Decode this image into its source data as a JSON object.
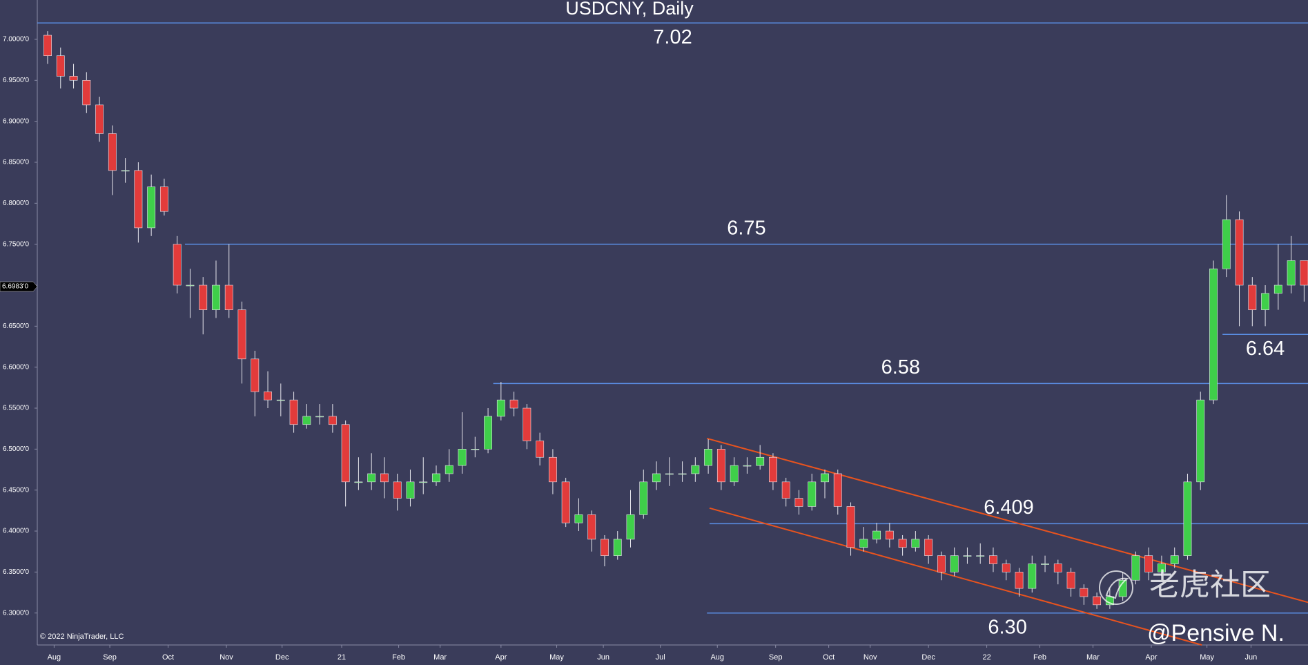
{
  "chart_data": {
    "type": "candlestick",
    "title": "USDCNY, Daily",
    "open": [
      7.005,
      6.98,
      6.955,
      6.95,
      6.92,
      6.885,
      6.84,
      6.84,
      6.77,
      6.82,
      6.75,
      6.7,
      6.7,
      6.67,
      6.7,
      6.67,
      6.61,
      6.57,
      6.56,
      6.56,
      6.53,
      6.54,
      6.54,
      6.53,
      6.46,
      6.46,
      6.47,
      6.46,
      6.44,
      6.46,
      6.46,
      6.47,
      6.48,
      6.5,
      6.5,
      6.54,
      6.56,
      6.55,
      6.51,
      6.49,
      6.46,
      6.41,
      6.42,
      6.39,
      6.37,
      6.39,
      6.42,
      6.46,
      6.47,
      6.47,
      6.47,
      6.48,
      6.5,
      6.46,
      6.48,
      6.48,
      6.49,
      6.46,
      6.44,
      6.43,
      6.46,
      6.47,
      6.43,
      6.38,
      6.39,
      6.4,
      6.39,
      6.38,
      6.39,
      6.37,
      6.35,
      6.37,
      6.37,
      6.37,
      6.36,
      6.35,
      6.33,
      6.36,
      6.36,
      6.35,
      6.33,
      6.32,
      6.31,
      6.32,
      6.34,
      6.37,
      6.35,
      6.36,
      6.37,
      6.46,
      6.56,
      6.72,
      6.78,
      6.7,
      6.67,
      6.69,
      6.7,
      6.73
    ],
    "high": [
      7.01,
      6.99,
      6.97,
      6.96,
      6.93,
      6.895,
      6.855,
      6.85,
      6.835,
      6.83,
      6.76,
      6.72,
      6.71,
      6.73,
      6.75,
      6.68,
      6.62,
      6.595,
      6.58,
      6.57,
      6.555,
      6.555,
      6.555,
      6.535,
      6.49,
      6.495,
      6.49,
      6.47,
      6.475,
      6.49,
      6.48,
      6.5,
      6.545,
      6.515,
      6.55,
      6.582,
      6.57,
      6.555,
      6.52,
      6.5,
      6.465,
      6.44,
      6.425,
      6.395,
      6.4,
      6.45,
      6.475,
      6.485,
      6.49,
      6.485,
      6.49,
      6.512,
      6.505,
      6.49,
      6.49,
      6.505,
      6.495,
      6.465,
      6.45,
      6.47,
      6.475,
      6.475,
      6.435,
      6.405,
      6.41,
      6.41,
      6.395,
      6.4,
      6.395,
      6.375,
      6.38,
      6.38,
      6.385,
      6.38,
      6.365,
      6.355,
      6.37,
      6.37,
      6.365,
      6.355,
      6.335,
      6.325,
      6.33,
      6.35,
      6.375,
      6.38,
      6.37,
      6.38,
      6.47,
      6.57,
      6.73,
      6.81,
      6.79,
      6.71,
      6.7,
      6.75,
      6.76,
      6.73
    ],
    "low": [
      6.97,
      6.94,
      6.94,
      6.91,
      6.875,
      6.81,
      6.825,
      6.752,
      6.76,
      6.785,
      6.69,
      6.66,
      6.64,
      6.66,
      6.66,
      6.58,
      6.54,
      6.55,
      6.54,
      6.52,
      6.525,
      6.53,
      6.52,
      6.43,
      6.45,
      6.45,
      6.44,
      6.425,
      6.43,
      6.445,
      6.455,
      6.46,
      6.47,
      6.49,
      6.495,
      6.535,
      6.54,
      6.5,
      6.48,
      6.445,
      6.405,
      6.4,
      6.375,
      6.357,
      6.365,
      6.38,
      6.415,
      6.45,
      6.455,
      6.46,
      6.46,
      6.47,
      6.45,
      6.455,
      6.47,
      6.475,
      6.45,
      6.43,
      6.42,
      6.425,
      6.44,
      6.42,
      6.37,
      6.375,
      6.385,
      6.38,
      6.37,
      6.375,
      6.36,
      6.34,
      6.345,
      6.36,
      6.36,
      6.35,
      6.34,
      6.32,
      6.325,
      6.35,
      6.335,
      6.32,
      6.31,
      6.305,
      6.305,
      6.315,
      6.335,
      6.34,
      6.345,
      6.355,
      6.365,
      6.45,
      6.555,
      6.71,
      6.65,
      6.65,
      6.65,
      6.67,
      6.69,
      6.68
    ],
    "close": [
      6.98,
      6.955,
      6.95,
      6.92,
      6.885,
      6.84,
      6.84,
      6.77,
      6.82,
      6.79,
      6.7,
      6.7,
      6.67,
      6.7,
      6.67,
      6.61,
      6.57,
      6.56,
      6.56,
      6.53,
      6.54,
      6.54,
      6.53,
      6.46,
      6.46,
      6.47,
      6.46,
      6.44,
      6.46,
      6.46,
      6.47,
      6.48,
      6.5,
      6.5,
      6.54,
      6.56,
      6.55,
      6.51,
      6.49,
      6.46,
      6.41,
      6.42,
      6.39,
      6.37,
      6.39,
      6.42,
      6.46,
      6.47,
      6.47,
      6.47,
      6.48,
      6.5,
      6.46,
      6.48,
      6.48,
      6.49,
      6.46,
      6.44,
      6.43,
      6.46,
      6.47,
      6.43,
      6.38,
      6.39,
      6.4,
      6.39,
      6.38,
      6.39,
      6.37,
      6.35,
      6.37,
      6.37,
      6.37,
      6.36,
      6.35,
      6.33,
      6.36,
      6.36,
      6.35,
      6.33,
      6.32,
      6.31,
      6.32,
      6.34,
      6.37,
      6.35,
      6.36,
      6.37,
      6.46,
      6.56,
      6.72,
      6.78,
      6.7,
      6.67,
      6.69,
      6.7,
      6.73,
      6.7
    ],
    "up_color": "#3fcf4a",
    "down_color": "#e23b3b",
    "xlim": [
      -0.8,
      97.3
    ],
    "xticks": [
      {
        "value": 0.5,
        "label": "Aug"
      },
      {
        "value": 4.8,
        "label": "Sep"
      },
      {
        "value": 9.3,
        "label": "Oct"
      },
      {
        "value": 13.8,
        "label": "Nov"
      },
      {
        "value": 18.1,
        "label": "Dec"
      },
      {
        "value": 22.7,
        "label": "21"
      },
      {
        "value": 27.1,
        "label": "Feb"
      },
      {
        "value": 30.3,
        "label": "Mar"
      },
      {
        "value": 35.0,
        "label": "Apr"
      },
      {
        "value": 39.3,
        "label": "May"
      },
      {
        "value": 42.9,
        "label": "Jun"
      },
      {
        "value": 47.3,
        "label": "Jul"
      },
      {
        "value": 51.7,
        "label": "Aug"
      },
      {
        "value": 56.2,
        "label": "Sep"
      },
      {
        "value": 60.3,
        "label": "Oct"
      },
      {
        "value": 63.5,
        "label": "Nov"
      },
      {
        "value": 68.0,
        "label": "Dec"
      },
      {
        "value": 72.5,
        "label": "22"
      },
      {
        "value": 76.6,
        "label": "Feb"
      },
      {
        "value": 80.7,
        "label": "Mar"
      },
      {
        "value": 85.2,
        "label": "Apr"
      },
      {
        "value": 89.5,
        "label": "May"
      },
      {
        "value": 92.9,
        "label": "Jun"
      }
    ],
    "ylim": [
      6.261,
      7.048
    ],
    "yticks": [
      {
        "value": 6.3,
        "label": "6.3000'0"
      },
      {
        "value": 6.35,
        "label": "6.3500'0"
      },
      {
        "value": 6.4,
        "label": "6.4000'0"
      },
      {
        "value": 6.45,
        "label": "6.4500'0"
      },
      {
        "value": 6.5,
        "label": "6.5000'0"
      },
      {
        "value": 6.55,
        "label": "6.5500'0"
      },
      {
        "value": 6.6,
        "label": "6.6000'0"
      },
      {
        "value": 6.65,
        "label": "6.6500'0"
      },
      {
        "value": 6.7,
        "label": "6.7000'0"
      },
      {
        "value": 6.75,
        "label": "6.7500'0"
      },
      {
        "value": 6.8,
        "label": "6.8000'0"
      },
      {
        "value": 6.85,
        "label": "6.8500'0"
      },
      {
        "value": 6.9,
        "label": "6.9000'0"
      },
      {
        "value": 6.95,
        "label": "6.9500'0"
      },
      {
        "value": 7.0,
        "label": "7.0000'0"
      }
    ],
    "price_marker": {
      "value": 6.6983,
      "label": "6.6983'0"
    },
    "level_color": "#5b8fe6",
    "levels": [
      {
        "value": 7.02,
        "start": -0.8,
        "label_position": "below"
      },
      {
        "value": 6.75,
        "start": 10.6,
        "label_position": "above"
      },
      {
        "value": 6.58,
        "start": 34.4,
        "label_position": "above"
      },
      {
        "value": 6.64,
        "start": 90.7,
        "label_position": "below"
      },
      {
        "value": 6.409,
        "start": 51.1,
        "label_position": "above"
      },
      {
        "value": 6.3,
        "label": "6.30",
        "start": 50.9,
        "label_position": "below"
      }
    ],
    "trendline_color": "#e8531e",
    "trendlines": [
      {
        "x": [
          50.9,
          97.3
        ],
        "y": [
          6.513,
          6.313
        ]
      },
      {
        "x": [
          51.1,
          89.1
        ],
        "y": [
          6.428,
          6.261
        ]
      }
    ],
    "copyright": "© 2022 NinjaTrader, LLC",
    "watermark": "老虎社区",
    "author": "@Pensive N."
  }
}
